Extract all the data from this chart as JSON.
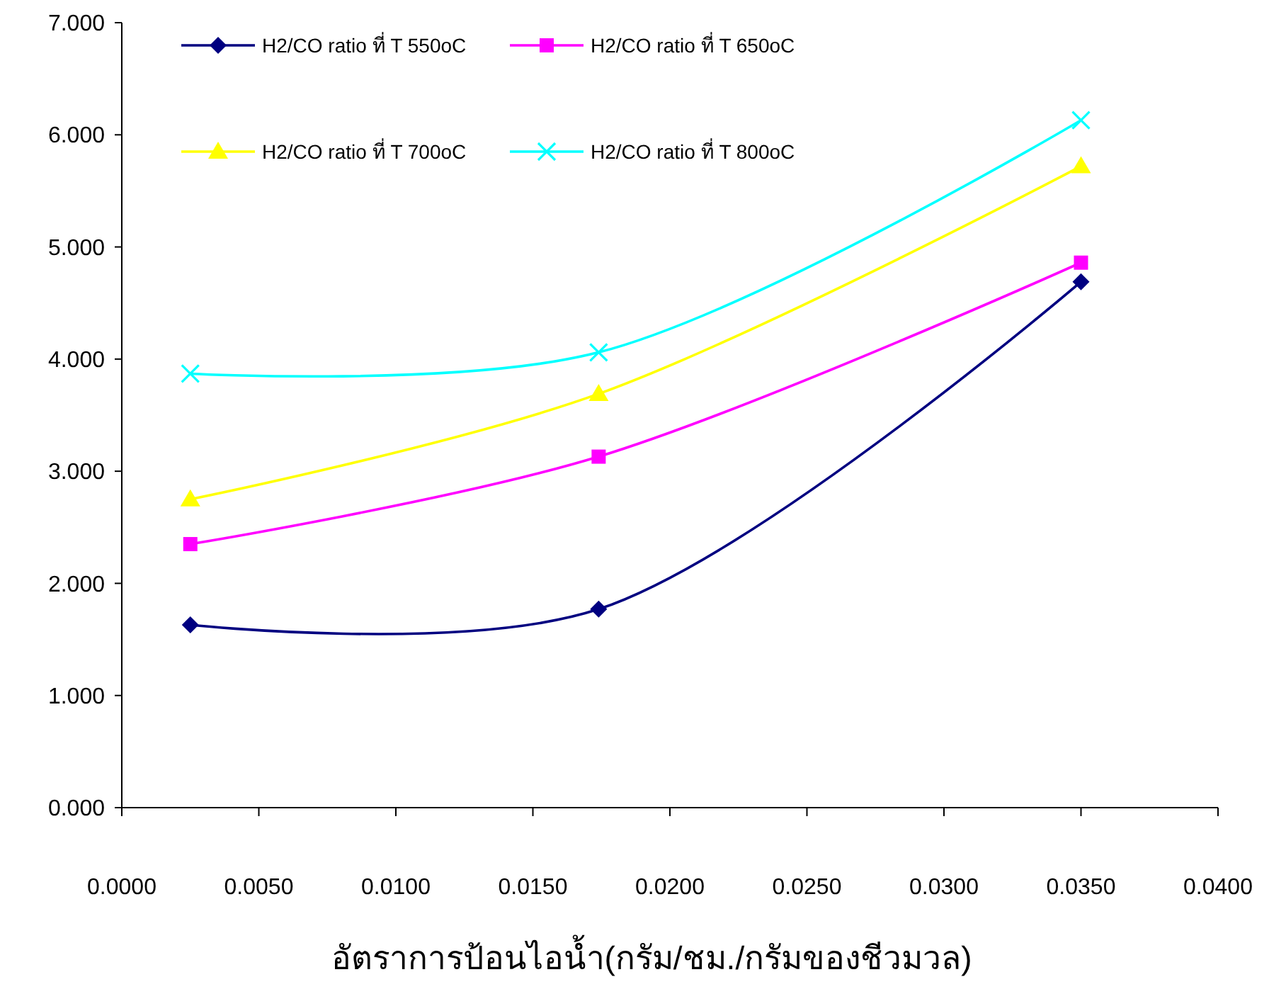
{
  "chart_data": {
    "type": "line",
    "xlabel": "อัตราการป้อนไอน้ำ(กรัม/ชม./กรัมของชีวมวล)",
    "x": [
      0.0025,
      0.0174,
      0.035
    ],
    "series": [
      {
        "name": "H2/CO ratio ที่ T 550oC",
        "color": "#000080",
        "marker": "diamond",
        "values": [
          1.63,
          1.77,
          4.69
        ]
      },
      {
        "name": "H2/CO ratio ที่ T 650oC",
        "color": "#ff00ff",
        "marker": "square",
        "values": [
          2.35,
          3.13,
          4.86
        ]
      },
      {
        "name": "H2/CO ratio ที่ T 700oC",
        "color": "#ffff00",
        "marker": "triangle",
        "values": [
          2.75,
          3.69,
          5.72
        ]
      },
      {
        "name": "H2/CO ratio ที่ T 800oC",
        "color": "#00ffff",
        "marker": "cross",
        "values": [
          3.87,
          4.06,
          6.13
        ]
      }
    ],
    "xlim": [
      0,
      0.04
    ],
    "xticks": [
      {
        "value": 0,
        "label": "0.0000"
      },
      {
        "value": 0.005,
        "label": "0.0050"
      },
      {
        "value": 0.01,
        "label": "0.0100"
      },
      {
        "value": 0.015,
        "label": "0.0150"
      },
      {
        "value": 0.02,
        "label": "0.0200"
      },
      {
        "value": 0.025,
        "label": "0.0250"
      },
      {
        "value": 0.03,
        "label": "0.0300"
      },
      {
        "value": 0.035,
        "label": "0.0350"
      },
      {
        "value": 0.04,
        "label": "0.0400"
      }
    ],
    "ylim": [
      0,
      7
    ],
    "yticks": [
      {
        "value": 0,
        "label": "0.000"
      },
      {
        "value": 1,
        "label": "1.000"
      },
      {
        "value": 2,
        "label": "2.000"
      },
      {
        "value": 3,
        "label": "3.000"
      },
      {
        "value": 4,
        "label": "4.000"
      },
      {
        "value": 5,
        "label": "5.000"
      },
      {
        "value": 6,
        "label": "6.000"
      },
      {
        "value": 7,
        "label": "7.000"
      }
    ],
    "grid": false,
    "legend": "top left",
    "line_style": "solid"
  }
}
